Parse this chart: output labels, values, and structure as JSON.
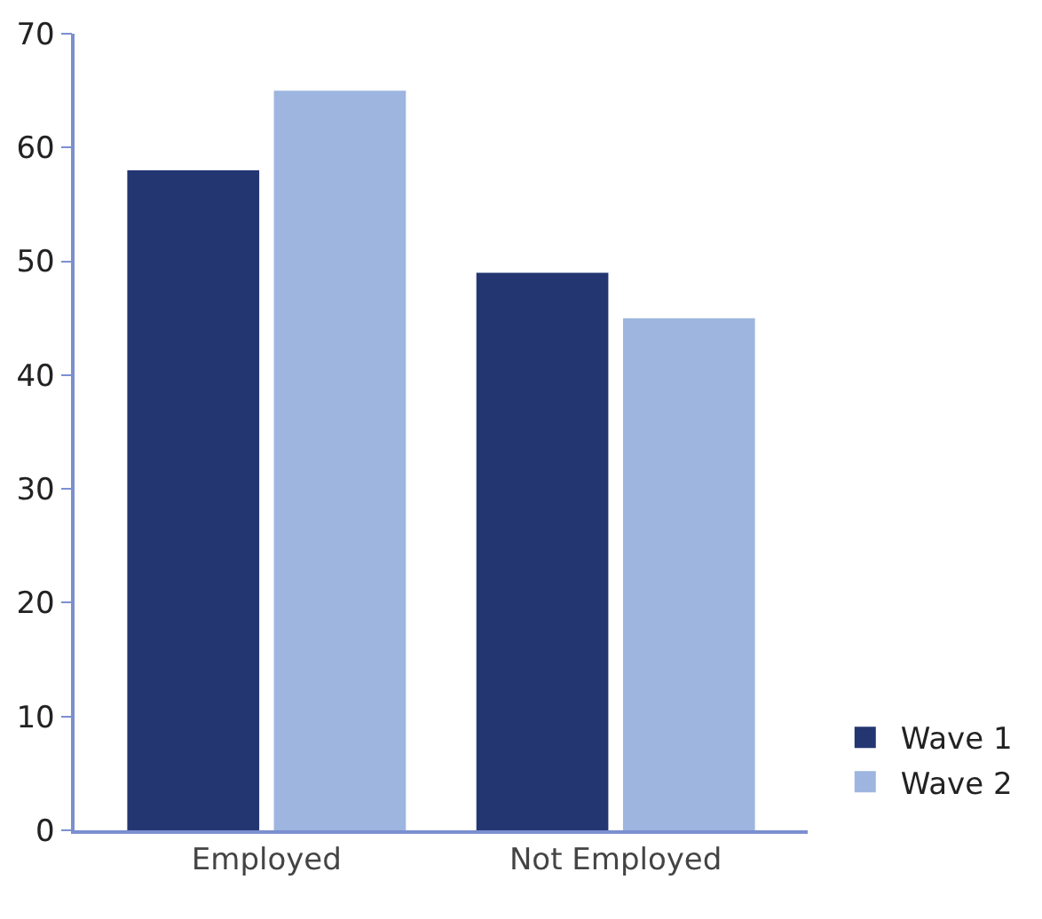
{
  "chart_data": {
    "type": "bar",
    "categories": [
      "Employed",
      "Not Employed"
    ],
    "series": [
      {
        "name": "Wave 1",
        "color": "#233672",
        "values": [
          58,
          49
        ]
      },
      {
        "name": "Wave 2",
        "color": "#9db5df",
        "values": [
          65,
          45
        ]
      }
    ],
    "ylim": [
      0,
      70
    ],
    "yticks": [
      0,
      10,
      20,
      30,
      40,
      50,
      60,
      70
    ],
    "grid": false,
    "legend": "bottom right"
  }
}
